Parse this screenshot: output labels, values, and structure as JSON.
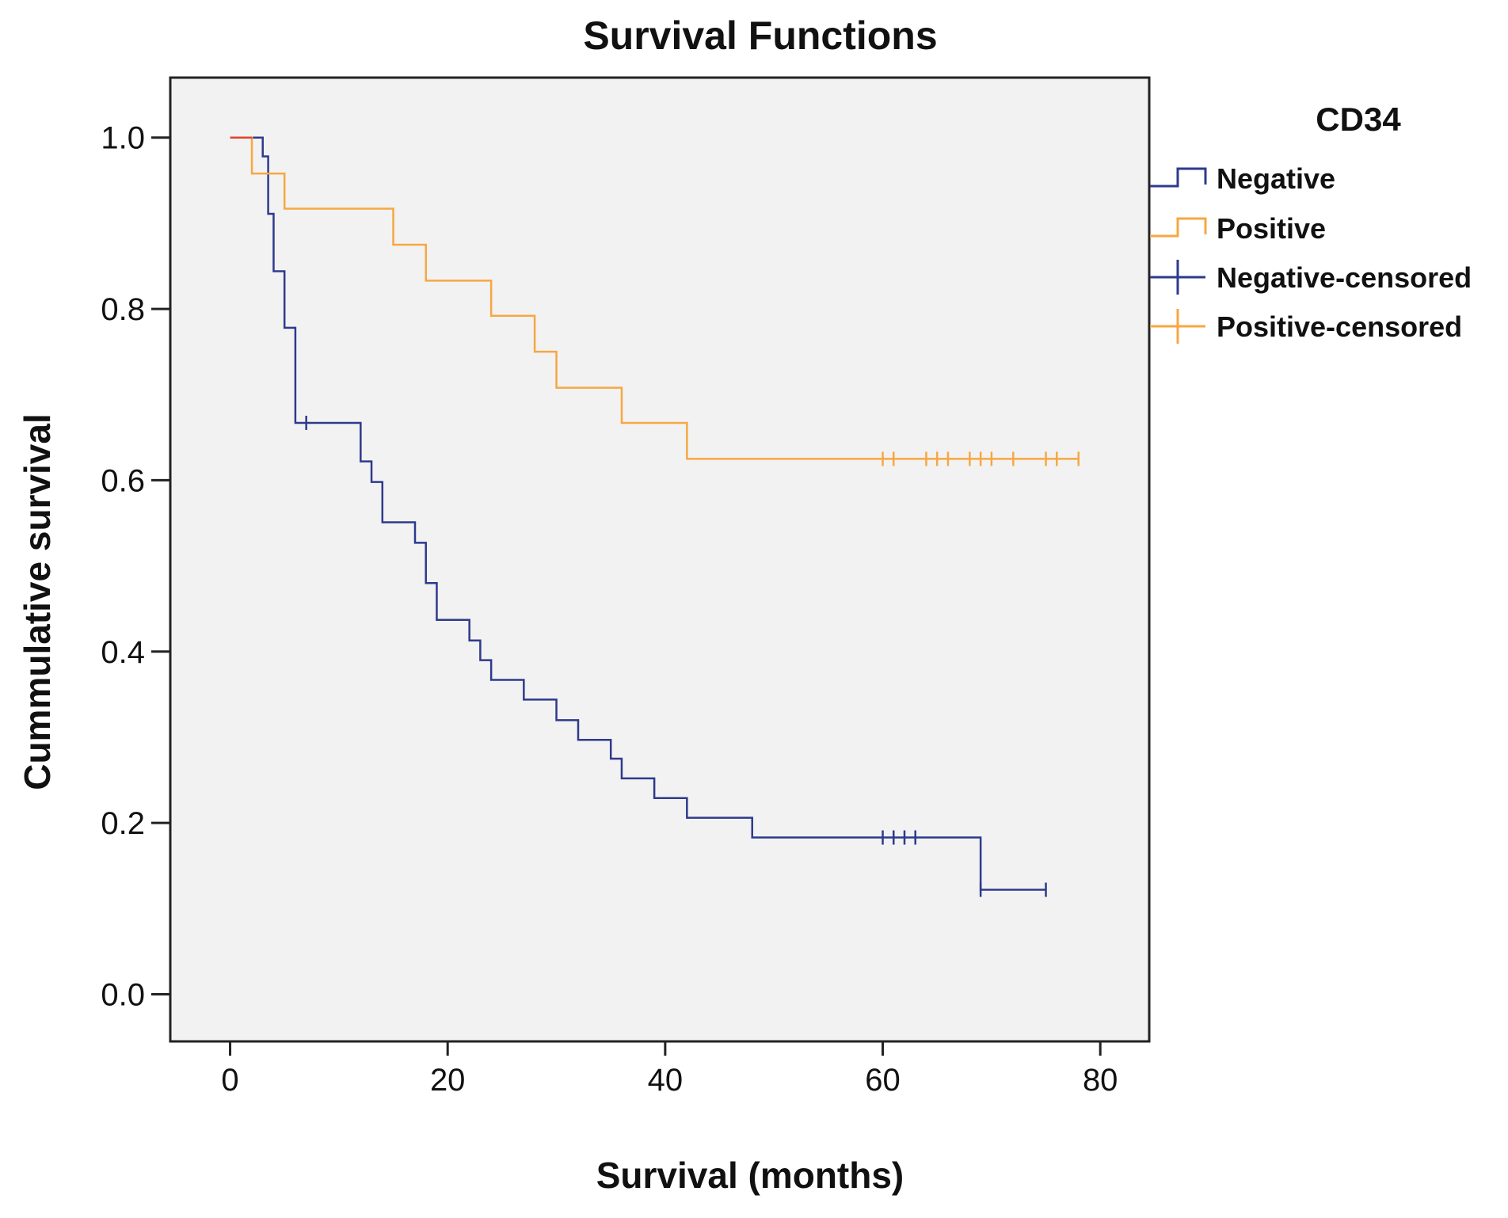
{
  "chart_data": {
    "type": "line",
    "subtype": "kaplan-meier-step",
    "title": "Survival Functions",
    "xlabel": "Survival (months)",
    "ylabel": "Cummulative survival",
    "xlim": [
      -5.5,
      84.5
    ],
    "ylim": [
      -0.055,
      1.07
    ],
    "xticks": [
      0,
      20,
      40,
      60,
      80
    ],
    "yticks": [
      0.0,
      0.2,
      0.4,
      0.6,
      0.8,
      1.0
    ],
    "ytick_labels": [
      "0.0",
      "0.2",
      "0.4",
      "0.6",
      "0.8",
      "1.0"
    ],
    "grid": false,
    "legend": {
      "title": "CD34",
      "position": "right",
      "entries": [
        "Negative",
        "Positive",
        "Negative-censored",
        "Positive-censored"
      ]
    },
    "colors": {
      "Negative": "#2e3a8c",
      "Positive": "#f7a742",
      "Negative-censored": "#2e3a8c",
      "Positive-censored": "#f7a742",
      "plot_background": "#f2f2f2",
      "start_segment": "#e0442a"
    },
    "series": [
      {
        "name": "Negative",
        "steps": [
          [
            0,
            1.0
          ],
          [
            3,
            0.978
          ],
          [
            3.5,
            0.911
          ],
          [
            4,
            0.844
          ],
          [
            5,
            0.778
          ],
          [
            6,
            0.667
          ],
          [
            12,
            0.622
          ],
          [
            13,
            0.598
          ],
          [
            14,
            0.551
          ],
          [
            17,
            0.527
          ],
          [
            18,
            0.48
          ],
          [
            19,
            0.437
          ],
          [
            22,
            0.413
          ],
          [
            23,
            0.39
          ],
          [
            24,
            0.367
          ],
          [
            27,
            0.344
          ],
          [
            30,
            0.32
          ],
          [
            32,
            0.297
          ],
          [
            35,
            0.275
          ],
          [
            36,
            0.252
          ],
          [
            39,
            0.229
          ],
          [
            42,
            0.206
          ],
          [
            48,
            0.183
          ],
          [
            69,
            0.122
          ],
          [
            75,
            0.122
          ]
        ],
        "censored": [
          [
            7,
            0.667
          ],
          [
            60,
            0.183
          ],
          [
            61,
            0.183
          ],
          [
            62,
            0.183
          ],
          [
            63,
            0.183
          ],
          [
            69,
            0.122
          ],
          [
            75,
            0.122
          ]
        ]
      },
      {
        "name": "Positive",
        "steps": [
          [
            0,
            1.0
          ],
          [
            2,
            0.958
          ],
          [
            5,
            0.917
          ],
          [
            15,
            0.875
          ],
          [
            18,
            0.833
          ],
          [
            24,
            0.792
          ],
          [
            28,
            0.75
          ],
          [
            30,
            0.708
          ],
          [
            36,
            0.667
          ],
          [
            42,
            0.625
          ],
          [
            78,
            0.625
          ]
        ],
        "censored": [
          [
            60,
            0.625
          ],
          [
            61,
            0.625
          ],
          [
            64,
            0.625
          ],
          [
            65,
            0.625
          ],
          [
            66,
            0.625
          ],
          [
            68,
            0.625
          ],
          [
            69,
            0.625
          ],
          [
            70,
            0.625
          ],
          [
            72,
            0.625
          ],
          [
            75,
            0.625
          ],
          [
            76,
            0.625
          ],
          [
            78,
            0.625
          ]
        ]
      }
    ]
  }
}
